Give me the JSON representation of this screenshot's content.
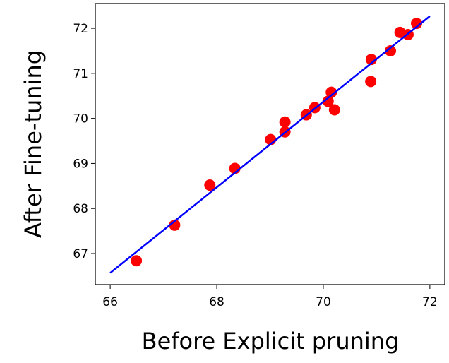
{
  "chart_data": {
    "type": "scatter",
    "xlabel": "Before Explicit pruning",
    "ylabel": "After Fine-tuning",
    "x": [
      66.49,
      67.21,
      67.87,
      68.34,
      69.01,
      69.28,
      69.28,
      69.68,
      69.84,
      70.09,
      70.15,
      70.21,
      70.89,
      70.9,
      71.26,
      71.44,
      71.59,
      71.75
    ],
    "y": [
      66.84,
      67.63,
      68.52,
      68.89,
      69.53,
      69.7,
      69.92,
      70.08,
      70.24,
      70.38,
      70.58,
      70.19,
      70.82,
      71.31,
      71.5,
      71.91,
      71.86,
      72.11
    ],
    "color": "#ff0000",
    "fit_line": {
      "x": [
        66,
        72
      ],
      "y": [
        66.57,
        72.27
      ],
      "color": "#0000ff"
    },
    "xlim": [
      65.72,
      72.28
    ],
    "ylim": [
      66.31,
      72.55
    ],
    "xticks": [
      66,
      68,
      70,
      72
    ],
    "yticks": [
      67,
      68,
      69,
      70,
      71,
      72
    ]
  }
}
